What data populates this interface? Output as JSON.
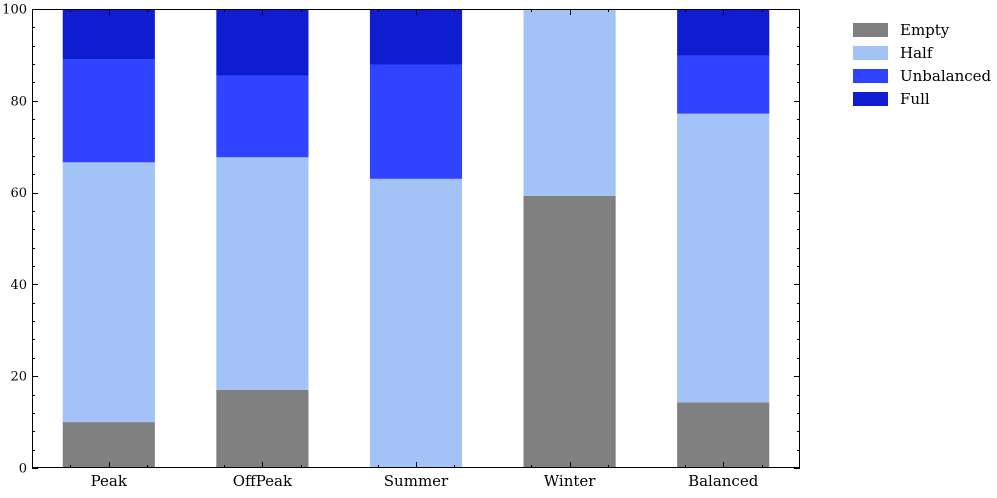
{
  "chart_data": {
    "type": "bar",
    "stacked": true,
    "categories": [
      "Peak",
      "OffPeak",
      "Summer",
      "Winter",
      "Balanced"
    ],
    "series": [
      {
        "name": "Empty",
        "color": "#808080",
        "values": [
          10.0,
          17.0,
          0.0,
          59.3,
          14.3
        ]
      },
      {
        "name": "Half",
        "color": "#a3c3f7",
        "values": [
          56.6,
          50.7,
          63.0,
          40.7,
          62.9
        ]
      },
      {
        "name": "Unbalanced",
        "color": "#3044ff",
        "values": [
          22.5,
          17.8,
          24.9,
          0.0,
          12.6
        ]
      },
      {
        "name": "Full",
        "color": "#0f1ccf",
        "values": [
          10.9,
          14.5,
          12.1,
          0.0,
          10.2
        ]
      }
    ],
    "ylim": [
      0,
      100
    ],
    "yticks": [
      "0",
      "20",
      "40",
      "60",
      "80",
      "100"
    ],
    "title": "",
    "xlabel": "",
    "ylabel": "",
    "grid": false,
    "legend_position": "outside-right"
  }
}
